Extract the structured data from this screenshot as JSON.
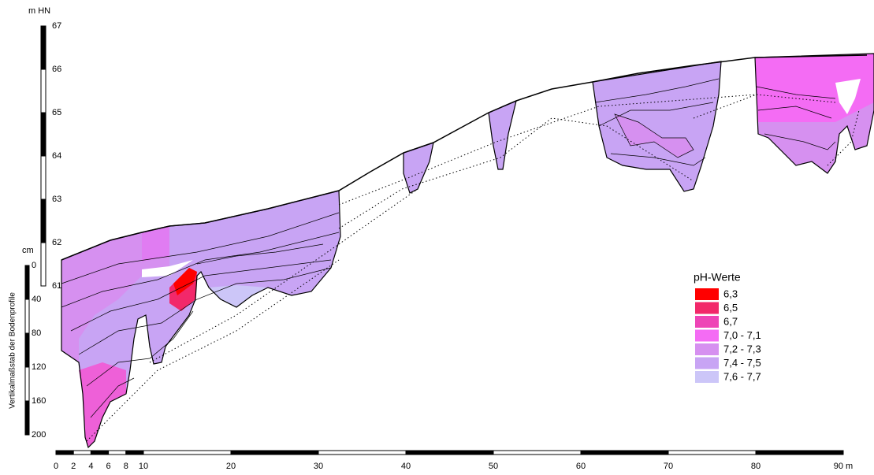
{
  "elevation_axis": {
    "unit": "m HN",
    "ticks": [
      "67",
      "66",
      "65",
      "64",
      "63",
      "62",
      "61"
    ]
  },
  "depth_axis": {
    "unit": "cm",
    "label": "Vertikalmaßstab der Bodenprofile",
    "ticks": [
      "0",
      "40",
      "80",
      "120",
      "160",
      "200"
    ]
  },
  "distance_axis": {
    "ticks": [
      "0",
      "2",
      "4",
      "6",
      "8",
      "10",
      "20",
      "30",
      "40",
      "50",
      "60",
      "70",
      "80",
      "90 m"
    ]
  },
  "legend": {
    "title": "pH-Werte",
    "items": [
      {
        "label": "6,3",
        "color": "#ff0000"
      },
      {
        "label": "6,5",
        "color": "#f2286a"
      },
      {
        "label": "6,7",
        "color": "#ee44b6"
      },
      {
        "label": "7,0 - 7,1",
        "color": "#f46cf4"
      },
      {
        "label": "7,2 - 7,3",
        "color": "#d690f0"
      },
      {
        "label": "7,4 - 7,5",
        "color": "#c8a4f4"
      },
      {
        "label": "7,6 - 7,7",
        "color": "#ccc6f8"
      }
    ]
  }
}
